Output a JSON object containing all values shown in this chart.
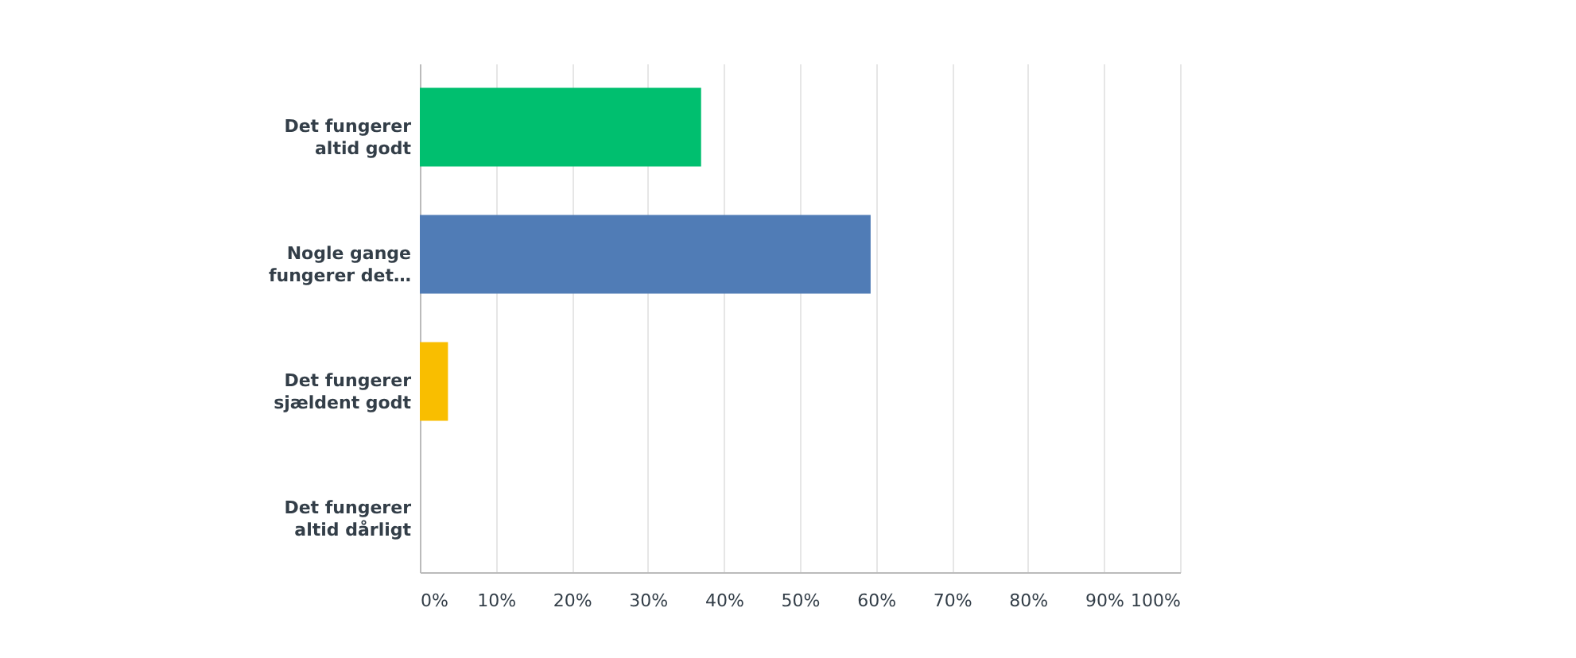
{
  "chart_data": {
    "type": "bar",
    "orientation": "horizontal",
    "categories": [
      "Det fungerer altid godt",
      "Nogle gange fungerer det…",
      "Det fungerer sjældent godt",
      "Det fungerer altid dårligt"
    ],
    "values": [
      37.0,
      59.3,
      3.7,
      0
    ],
    "colors": [
      "#00bf6f",
      "#507cb6",
      "#f9be00",
      "#6bc8cd"
    ],
    "xlim": [
      0,
      100
    ],
    "xticks": [
      {
        "value": 0,
        "label": "0%"
      },
      {
        "value": 10,
        "label": "10%"
      },
      {
        "value": 20,
        "label": "20%"
      },
      {
        "value": 30,
        "label": "30%"
      },
      {
        "value": 40,
        "label": "40%"
      },
      {
        "value": 50,
        "label": "50%"
      },
      {
        "value": 60,
        "label": "60%"
      },
      {
        "value": 70,
        "label": "70%"
      },
      {
        "value": 80,
        "label": "80%"
      },
      {
        "value": 90,
        "label": "90%"
      },
      {
        "value": 100,
        "label": "100%"
      }
    ],
    "grid": "x"
  }
}
